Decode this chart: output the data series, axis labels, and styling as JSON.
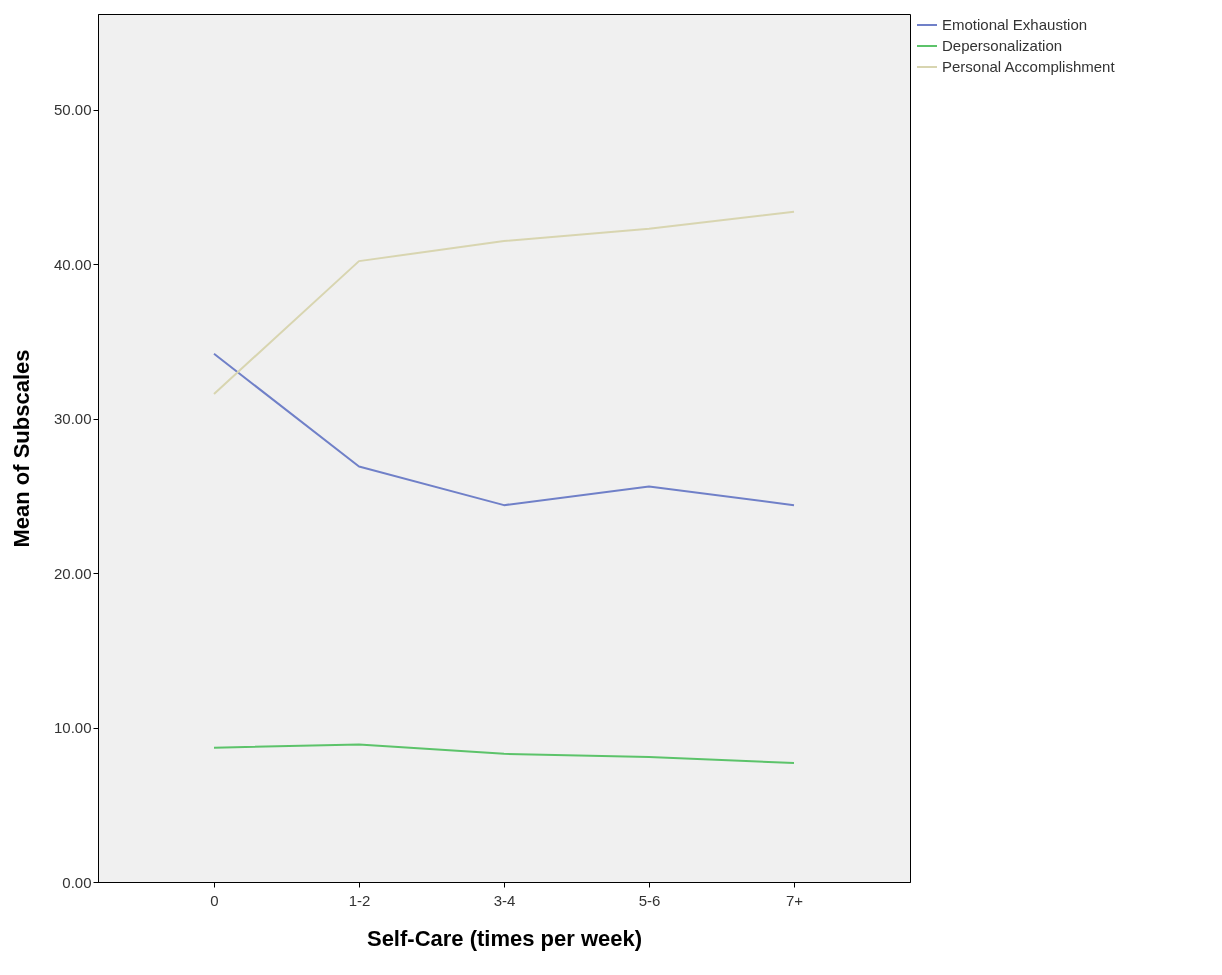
{
  "chart_data": {
    "type": "line",
    "xlabel": "Self-Care (times per week)",
    "ylabel": "Mean of Subscales",
    "categories": [
      "0",
      "1-2",
      "3-4",
      "5-6",
      "7+"
    ],
    "series": [
      {
        "name": "Emotional Exhaustion",
        "color": "#7080c8",
        "values": [
          34.2,
          26.9,
          24.4,
          25.6,
          24.4
        ]
      },
      {
        "name": "Depersonalization",
        "color": "#5cc36a",
        "values": [
          8.7,
          8.9,
          8.3,
          8.1,
          7.7
        ]
      },
      {
        "name": "Personal Accomplishment",
        "color": "#d8d5b0",
        "values": [
          31.6,
          40.2,
          41.5,
          42.3,
          43.4
        ]
      }
    ],
    "ylim": [
      0,
      56.2
    ],
    "yticks": [
      {
        "value": 0,
        "label": "0.00"
      },
      {
        "value": 10,
        "label": "10.00"
      },
      {
        "value": 20,
        "label": "20.00"
      },
      {
        "value": 30,
        "label": "30.00"
      },
      {
        "value": 40,
        "label": "40.00"
      },
      {
        "value": 50,
        "label": "50.00"
      }
    ],
    "grid": false,
    "legend": "right",
    "marker": "none",
    "line_style": "solid"
  }
}
